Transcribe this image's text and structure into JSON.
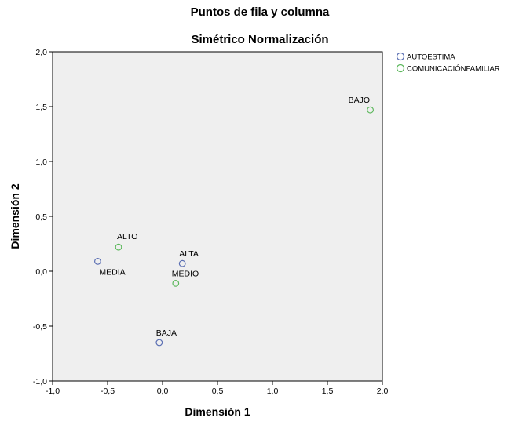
{
  "chart_data": {
    "type": "scatter",
    "title": "Puntos de fila y columna",
    "subtitle": "Simétrico Normalización",
    "xlabel": "Dimensión 1",
    "ylabel": "Dimensión 2",
    "xlim": [
      -1.0,
      2.0
    ],
    "ylim": [
      -1.0,
      2.0
    ],
    "xticks": [
      "-1,0",
      "-0,5",
      "0,0",
      "0,5",
      "1,0",
      "1,5",
      "2,0"
    ],
    "yticks": [
      "-1,0",
      "-0,5",
      "0,0",
      "0,5",
      "1,0",
      "1,5",
      "2,0"
    ],
    "xtick_values": [
      -1.0,
      -0.5,
      0.0,
      0.5,
      1.0,
      1.5,
      2.0
    ],
    "ytick_values": [
      -1.0,
      -0.5,
      0.0,
      0.5,
      1.0,
      1.5,
      2.0
    ],
    "grid": false,
    "legend_position": "top-right",
    "plot_background": "#efefef",
    "series": [
      {
        "name": "AUTOESTIMA",
        "color": "#5b6fb3",
        "points": [
          {
            "label": "MEDIA",
            "x": -0.59,
            "y": 0.09
          },
          {
            "label": "ALTA",
            "x": 0.18,
            "y": 0.07
          },
          {
            "label": "BAJA",
            "x": -0.03,
            "y": -0.65
          }
        ]
      },
      {
        "name": "COMUNICACIÓNFAMILIAR",
        "color": "#5cb85c",
        "points": [
          {
            "label": "ALTO",
            "x": -0.4,
            "y": 0.22
          },
          {
            "label": "MEDIO",
            "x": 0.12,
            "y": -0.11
          },
          {
            "label": "BAJO",
            "x": 1.89,
            "y": 1.47
          }
        ]
      }
    ]
  }
}
